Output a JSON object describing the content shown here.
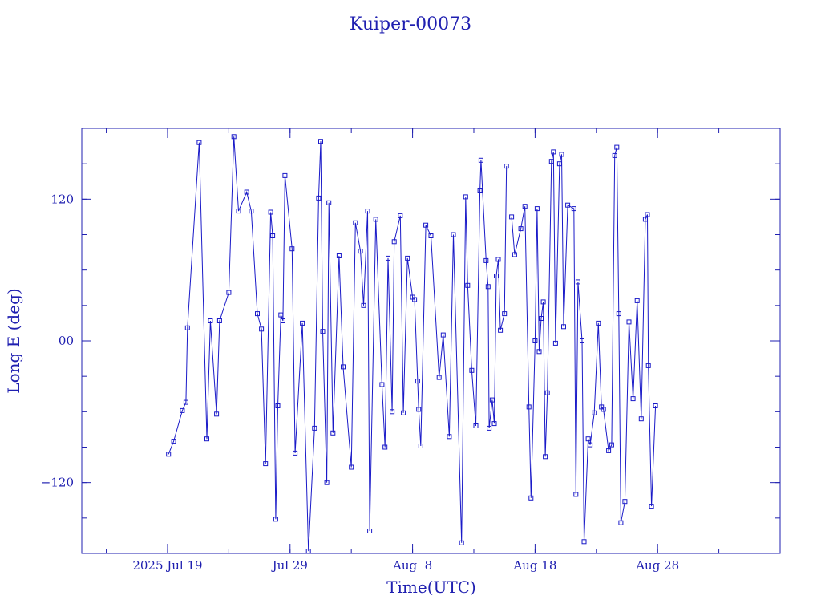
{
  "chart_data": {
    "type": "scatter",
    "title": "Kuiper-00073",
    "xlabel": "Time(UTC)",
    "ylabel": "Long E (deg)",
    "colors": {
      "axes": "#1f1fb0",
      "series": "#1a1ac8"
    },
    "x_axis": {
      "range_days": [
        "2025-07-12",
        "2025-09-07"
      ],
      "major_ticks": [
        {
          "date": "2025-07-19",
          "label": "2025 Jul 19"
        },
        {
          "date": "2025-07-29",
          "label": "Jul 29"
        },
        {
          "date": "2025-08-08",
          "label": "Aug  8"
        },
        {
          "date": "2025-08-18",
          "label": "Aug 18"
        },
        {
          "date": "2025-08-28",
          "label": "Aug 28"
        }
      ],
      "minor_tick_interval_days": 5
    },
    "y_axis": {
      "ylim": [
        -180,
        180
      ],
      "major_ticks": [
        {
          "value": -120,
          "label": "−120"
        },
        {
          "value": 0,
          "label": "00"
        },
        {
          "value": 120,
          "label": "120"
        }
      ],
      "minor_tick_interval": 30
    },
    "series": [
      {
        "marker": "square",
        "points": [
          [
            "2025-07-19T02:00",
            -96
          ],
          [
            "2025-07-19T12:00",
            -85
          ],
          [
            "2025-07-20T05:00",
            -59
          ],
          [
            "2025-07-20T12:00",
            -52
          ],
          [
            "2025-07-20T15:00",
            11
          ],
          [
            "2025-07-21T14:00",
            168
          ],
          [
            "2025-07-22T05:00",
            -83
          ],
          [
            "2025-07-22T12:00",
            17
          ],
          [
            "2025-07-23T00:00",
            -62
          ],
          [
            "2025-07-23T06:00",
            17
          ],
          [
            "2025-07-24T00:00",
            41
          ],
          [
            "2025-07-24T10:00",
            173
          ],
          [
            "2025-07-24T19:00",
            110
          ],
          [
            "2025-07-25T11:00",
            126
          ],
          [
            "2025-07-25T20:00",
            110
          ],
          [
            "2025-07-26T08:00",
            23
          ],
          [
            "2025-07-26T16:00",
            10
          ],
          [
            "2025-07-27T00:00",
            -104
          ],
          [
            "2025-07-27T10:00",
            109
          ],
          [
            "2025-07-27T14:00",
            89
          ],
          [
            "2025-07-27T20:00",
            -151
          ],
          [
            "2025-07-28T00:00",
            -55
          ],
          [
            "2025-07-28T06:00",
            22
          ],
          [
            "2025-07-28T10:00",
            17
          ],
          [
            "2025-07-28T14:00",
            140
          ],
          [
            "2025-07-29T04:00",
            78
          ],
          [
            "2025-07-29T10:00",
            -95
          ],
          [
            "2025-07-30T00:00",
            15
          ],
          [
            "2025-07-30T12:00",
            -178
          ],
          [
            "2025-07-31T00:00",
            -74
          ],
          [
            "2025-07-31T08:00",
            121
          ],
          [
            "2025-07-31T12:00",
            169
          ],
          [
            "2025-07-31T16:00",
            8
          ],
          [
            "2025-08-01T00:00",
            -120
          ],
          [
            "2025-08-01T04:00",
            117
          ],
          [
            "2025-08-01T12:00",
            -78
          ],
          [
            "2025-08-02T00:00",
            72
          ],
          [
            "2025-08-02T08:00",
            -22
          ],
          [
            "2025-08-03T00:00",
            -107
          ],
          [
            "2025-08-03T08:00",
            100
          ],
          [
            "2025-08-03T18:00",
            76
          ],
          [
            "2025-08-04T00:00",
            30
          ],
          [
            "2025-08-04T08:00",
            110
          ],
          [
            "2025-08-04T12:00",
            -161
          ],
          [
            "2025-08-05T00:00",
            103
          ],
          [
            "2025-08-05T12:00",
            -37
          ],
          [
            "2025-08-05T18:00",
            -90
          ],
          [
            "2025-08-06T00:00",
            70
          ],
          [
            "2025-08-06T08:00",
            -60
          ],
          [
            "2025-08-06T12:00",
            84
          ],
          [
            "2025-08-07T00:00",
            106
          ],
          [
            "2025-08-07T06:00",
            -61
          ],
          [
            "2025-08-07T14:00",
            70
          ],
          [
            "2025-08-08T00:00",
            37
          ],
          [
            "2025-08-08T04:00",
            35
          ],
          [
            "2025-08-08T10:00",
            -34
          ],
          [
            "2025-08-08T12:00",
            -58
          ],
          [
            "2025-08-08T16:00",
            -89
          ],
          [
            "2025-08-09T02:00",
            98
          ],
          [
            "2025-08-09T12:00",
            89
          ],
          [
            "2025-08-10T04:00",
            -31
          ],
          [
            "2025-08-10T12:00",
            5
          ],
          [
            "2025-08-11T00:00",
            -81
          ],
          [
            "2025-08-11T08:00",
            90
          ],
          [
            "2025-08-12T00:00",
            -171
          ],
          [
            "2025-08-12T08:00",
            122
          ],
          [
            "2025-08-12T12:00",
            47
          ],
          [
            "2025-08-12T20:00",
            -25
          ],
          [
            "2025-08-13T04:00",
            -72
          ],
          [
            "2025-08-13T12:00",
            127
          ],
          [
            "2025-08-13T14:00",
            153
          ],
          [
            "2025-08-14T00:00",
            68
          ],
          [
            "2025-08-14T04:00",
            46
          ],
          [
            "2025-08-14T06:00",
            -74
          ],
          [
            "2025-08-14T12:00",
            -50
          ],
          [
            "2025-08-14T16:00",
            -70
          ],
          [
            "2025-08-14T20:00",
            55
          ],
          [
            "2025-08-15T00:00",
            69
          ],
          [
            "2025-08-15T04:00",
            9
          ],
          [
            "2025-08-15T12:00",
            23
          ],
          [
            "2025-08-15T16:00",
            148
          ]
        ]
      },
      {
        "marker": "square",
        "points": [
          [
            "2025-08-16T02:00",
            105
          ],
          [
            "2025-08-16T08:00",
            73
          ],
          [
            "2025-08-16T20:00",
            95
          ],
          [
            "2025-08-17T04:00",
            114
          ],
          [
            "2025-08-17T12:00",
            -56
          ],
          [
            "2025-08-17T16:00",
            -133
          ],
          [
            "2025-08-18T00:00",
            0
          ],
          [
            "2025-08-18T04:00",
            112
          ],
          [
            "2025-08-18T08:00",
            -9
          ],
          [
            "2025-08-18T12:00",
            19
          ],
          [
            "2025-08-18T16:00",
            33
          ],
          [
            "2025-08-18T20:00",
            -98
          ],
          [
            "2025-08-19T00:00",
            -44
          ],
          [
            "2025-08-19T08:00",
            152
          ],
          [
            "2025-08-19T12:00",
            160
          ],
          [
            "2025-08-19T16:00",
            -2
          ],
          [
            "2025-08-20T00:00",
            150
          ],
          [
            "2025-08-20T04:00",
            158
          ],
          [
            "2025-08-20T08:00",
            12
          ],
          [
            "2025-08-20T16:00",
            115
          ],
          [
            "2025-08-21T04:00",
            112
          ],
          [
            "2025-08-21T08:00",
            -130
          ],
          [
            "2025-08-21T12:00",
            50
          ],
          [
            "2025-08-21T20:00",
            0
          ],
          [
            "2025-08-22T00:00",
            -170
          ],
          [
            "2025-08-22T08:00",
            -83
          ],
          [
            "2025-08-22T12:00",
            -88
          ],
          [
            "2025-08-22T20:00",
            -61
          ],
          [
            "2025-08-23T04:00",
            15
          ],
          [
            "2025-08-23T10:00",
            -56
          ],
          [
            "2025-08-23T14:00",
            -58
          ],
          [
            "2025-08-24T00:00",
            -93
          ],
          [
            "2025-08-24T06:00",
            -88
          ],
          [
            "2025-08-24T12:00",
            157
          ],
          [
            "2025-08-24T16:00",
            164
          ],
          [
            "2025-08-24T20:00",
            23
          ],
          [
            "2025-08-25T00:00",
            -154
          ],
          [
            "2025-08-25T08:00",
            -136
          ],
          [
            "2025-08-25T16:00",
            16
          ],
          [
            "2025-08-26T00:00",
            -49
          ],
          [
            "2025-08-26T08:00",
            34
          ],
          [
            "2025-08-26T16:00",
            -66
          ],
          [
            "2025-08-27T00:00",
            103
          ],
          [
            "2025-08-27T04:00",
            107
          ],
          [
            "2025-08-27T06:00",
            -21
          ],
          [
            "2025-08-27T12:00",
            -140
          ],
          [
            "2025-08-27T20:00",
            -55
          ]
        ]
      }
    ]
  }
}
